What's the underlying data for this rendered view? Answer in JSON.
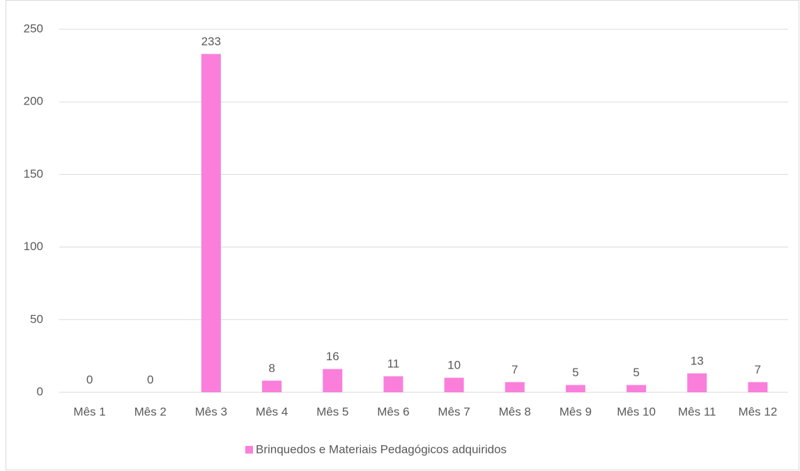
{
  "chart_data": {
    "type": "bar",
    "categories": [
      "Mês 1",
      "Mês 2",
      "Mês 3",
      "Mês 4",
      "Mês 5",
      "Mês 6",
      "Mês 7",
      "Mês 8",
      "Mês 9",
      "Mês 10",
      "Mês 11",
      "Mês 12"
    ],
    "series": [
      {
        "name": "Brinquedos e Materiais Pedagógicos adquiridos",
        "color": "#f97fdb",
        "values": [
          0,
          0,
          233,
          8,
          16,
          11,
          10,
          7,
          5,
          5,
          13,
          7
        ]
      }
    ],
    "ylim": [
      0,
      250
    ],
    "yticks": [
      0,
      50,
      100,
      150,
      200,
      250
    ],
    "grid": true,
    "legend": "bottom"
  }
}
